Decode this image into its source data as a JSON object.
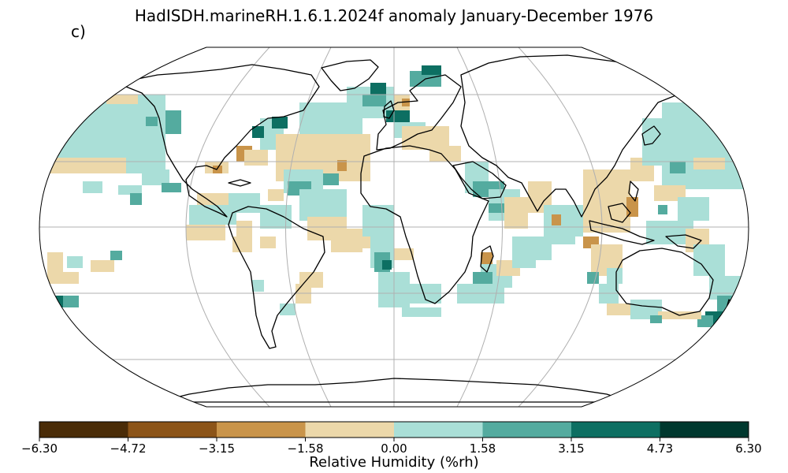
{
  "title": "HadISDH.marineRH.1.6.1.2024f anomaly January-December 1976",
  "panel_label": "c)",
  "colorbar": {
    "label": "Relative Humidity (%rh)",
    "ticks": [
      "−6.30",
      "−4.72",
      "−3.15",
      "−1.58",
      "0.00",
      "1.58",
      "3.15",
      "4.73",
      "6.30"
    ],
    "colors": [
      "#4a2c08",
      "#8c5418",
      "#c9944a",
      "#ecd8aa",
      "#aadfd7",
      "#54ab9f",
      "#0d6f62",
      "#00382e"
    ]
  },
  "map": {
    "projection": "Robinson",
    "outline_color": "#000000",
    "graticule_color": "#b0b0b0",
    "coastline_color": "#000000"
  },
  "chart_data": {
    "type": "heatmap",
    "variable": "marine relative humidity anomaly",
    "units": "%rh",
    "range": [
      -6.3,
      6.3
    ],
    "bins": [
      -6.3,
      -4.72,
      -3.15,
      -1.58,
      0.0,
      1.58,
      3.15,
      4.73,
      6.3
    ]
  }
}
